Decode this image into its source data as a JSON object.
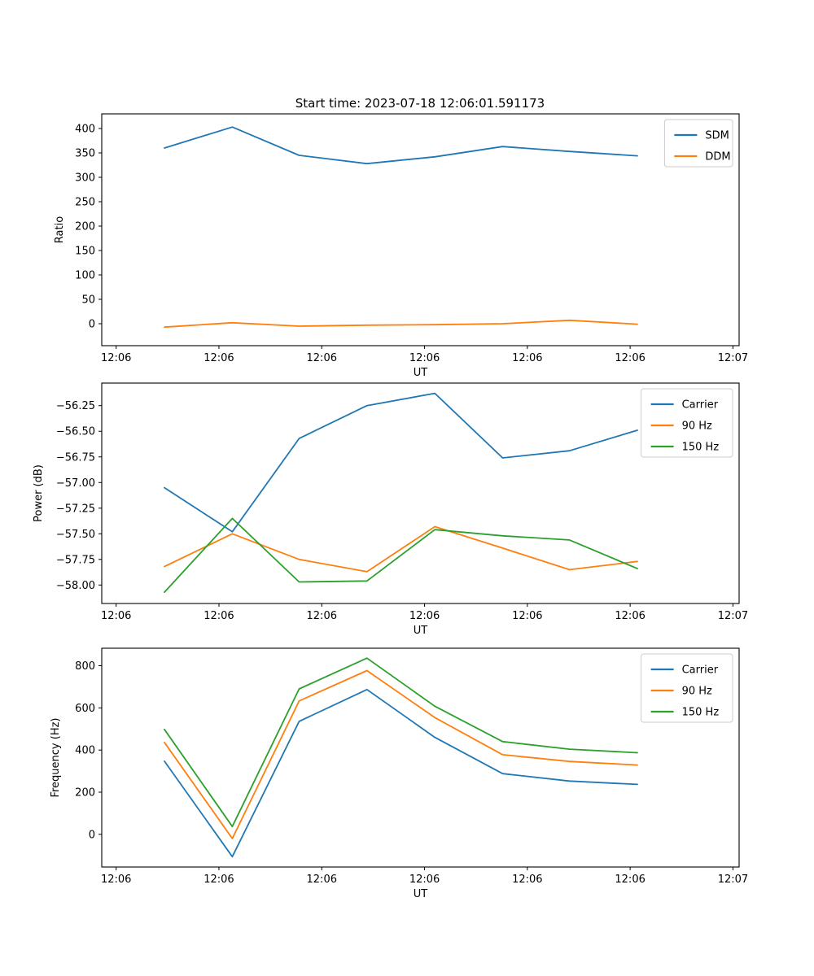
{
  "title": "Start time: 2023-07-18 12:06:01.591173",
  "colors": {
    "blue": "#1f77b4",
    "orange": "#ff7f0e",
    "green": "#2ca02c"
  },
  "chart_data": [
    {
      "type": "line",
      "title": "Start time: 2023-07-18 12:06:01.591173",
      "xlabel": "UT",
      "ylabel": "Ratio",
      "x": [
        4.7,
        11.3,
        17.8,
        24.4,
        31.0,
        37.6,
        44.1,
        50.7
      ],
      "x_unit": "seconds after 12:06:00",
      "xlim": [
        -1.4,
        60.6
      ],
      "xticks": [
        0,
        10,
        20,
        30,
        40,
        50,
        60
      ],
      "xtick_labels": [
        "12:06",
        "12:06",
        "12:06",
        "12:06",
        "12:06",
        "12:06",
        "12:07"
      ],
      "ylim": [
        -45,
        430
      ],
      "yticks": [
        0,
        50,
        100,
        150,
        200,
        250,
        300,
        350,
        400
      ],
      "ytick_labels": [
        "0",
        "50",
        "100",
        "150",
        "200",
        "250",
        "300",
        "350",
        "400"
      ],
      "grid": false,
      "legend_loc": "upper right",
      "series": [
        {
          "name": "SDM",
          "color": "#1f77b4",
          "values": [
            360,
            403,
            345,
            328,
            342,
            363,
            353,
            344
          ]
        },
        {
          "name": "DDM",
          "color": "#ff7f0e",
          "values": [
            -7,
            2,
            -5,
            -3,
            -2,
            0,
            7,
            -1
          ]
        }
      ]
    },
    {
      "type": "line",
      "xlabel": "UT",
      "ylabel": "Power (dB)",
      "x": [
        4.7,
        11.3,
        17.8,
        24.4,
        31.0,
        37.6,
        44.1,
        50.7
      ],
      "x_unit": "seconds after 12:06:00",
      "xlim": [
        -1.4,
        60.6
      ],
      "xticks": [
        0,
        10,
        20,
        30,
        40,
        50,
        60
      ],
      "xtick_labels": [
        "12:06",
        "12:06",
        "12:06",
        "12:06",
        "12:06",
        "12:06",
        "12:07"
      ],
      "ylim": [
        -58.18,
        -56.03
      ],
      "yticks": [
        -58.0,
        -57.75,
        -57.5,
        -57.25,
        -57.0,
        -56.75,
        -56.5,
        -56.25
      ],
      "ytick_labels": [
        "−58.00",
        "−57.75",
        "−57.50",
        "−57.25",
        "−57.00",
        "−56.75",
        "−56.50",
        "−56.25"
      ],
      "grid": false,
      "legend_loc": "upper right",
      "series": [
        {
          "name": "Carrier",
          "color": "#1f77b4",
          "values": [
            -57.05,
            -57.48,
            -56.57,
            -56.25,
            -56.13,
            -56.76,
            -56.69,
            -56.49
          ]
        },
        {
          "name": "90 Hz",
          "color": "#ff7f0e",
          "values": [
            -57.82,
            -57.5,
            -57.75,
            -57.87,
            -57.43,
            -57.64,
            -57.85,
            -57.77
          ]
        },
        {
          "name": "150 Hz",
          "color": "#2ca02c",
          "values": [
            -58.07,
            -57.35,
            -57.97,
            -57.96,
            -57.46,
            -57.52,
            -57.56,
            -57.84
          ]
        }
      ]
    },
    {
      "type": "line",
      "xlabel": "UT",
      "ylabel": "Frequency (Hz)",
      "x": [
        4.7,
        11.3,
        17.8,
        24.4,
        31.0,
        37.6,
        44.1,
        50.7
      ],
      "x_unit": "seconds after 12:06:00",
      "xlim": [
        -1.4,
        60.6
      ],
      "xticks": [
        0,
        10,
        20,
        30,
        40,
        50,
        60
      ],
      "xtick_labels": [
        "12:06",
        "12:06",
        "12:06",
        "12:06",
        "12:06",
        "12:06",
        "12:07"
      ],
      "ylim": [
        -155,
        883
      ],
      "yticks": [
        0,
        200,
        400,
        600,
        800
      ],
      "ytick_labels": [
        "0",
        "200",
        "400",
        "600",
        "800"
      ],
      "grid": false,
      "legend_loc": "upper right",
      "series": [
        {
          "name": "Carrier",
          "color": "#1f77b4",
          "values": [
            347,
            -106,
            536,
            687,
            460,
            288,
            253,
            237
          ]
        },
        {
          "name": "90 Hz",
          "color": "#ff7f0e",
          "values": [
            436,
            -20,
            633,
            777,
            554,
            378,
            346,
            329
          ]
        },
        {
          "name": "150 Hz",
          "color": "#2ca02c",
          "values": [
            498,
            37,
            690,
            836,
            608,
            440,
            404,
            387
          ]
        }
      ]
    }
  ]
}
